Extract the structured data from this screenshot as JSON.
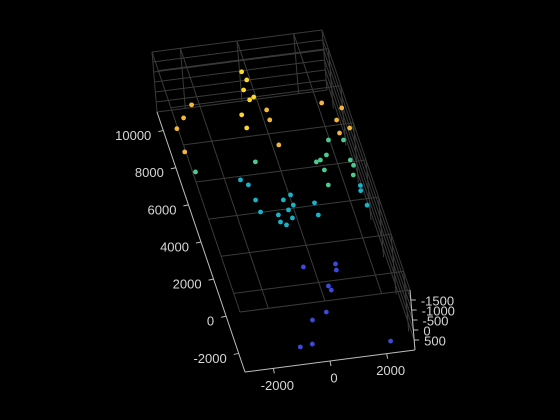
{
  "chart_data": {
    "type": "scatter3d",
    "xlim": [
      -3000,
      3000
    ],
    "ylim": [
      -3000,
      11000
    ],
    "zlim": [
      -2000,
      1000
    ],
    "xticks": [
      -2000,
      0,
      2000
    ],
    "yticks": [
      -2000,
      0,
      2000,
      4000,
      6000,
      8000,
      10000
    ],
    "zticks": [
      -1500,
      -1000,
      -500,
      0,
      500
    ],
    "grid": true,
    "series": [
      {
        "color": "#3d48dc",
        "x": [
          -930,
          -490,
          2190,
          -210,
          350,
          720,
          770,
          90,
          1210,
          1170
        ],
        "y": [
          -2600,
          -2530,
          -2900,
          -1290,
          -970,
          360,
          130,
          1510,
          1450,
          1130
        ],
        "z": [
          500,
          500,
          500,
          500,
          500,
          500,
          500,
          500,
          500,
          500
        ]
      },
      {
        "color": "#19b3c9",
        "x": [
          180,
          240,
          0,
          -170,
          460,
          480,
          -160,
          280,
          1200,
          1190,
          -730,
          -1040,
          -830,
          -760,
          2900,
          2950,
          2950
        ],
        "y": [
          5100,
          4550,
          3790,
          3980,
          4770,
          5310,
          4360,
          4110,
          4740,
          4090,
          4630,
          6420,
          6110,
          5280,
          5060,
          4270,
          5330
        ],
        "z": [
          500,
          500,
          500,
          500,
          500,
          500,
          500,
          500,
          500,
          500,
          500,
          500,
          500,
          500,
          500,
          500,
          500
        ]
      },
      {
        "color": "#4cc98f",
        "x": [
          1890,
          2150,
          1730,
          1910,
          1870,
          -330,
          2830,
          2950,
          2900,
          2900,
          2390,
          -2470
        ],
        "y": [
          6910,
          7130,
          6840,
          6370,
          5570,
          7250,
          5920,
          6420,
          6710,
          7790,
          7890,
          7130
        ],
        "z": [
          500,
          500,
          500,
          500,
          500,
          500,
          500,
          500,
          500,
          500,
          500,
          500
        ]
      },
      {
        "color": "#fbd62b",
        "x": [
          -110,
          -30,
          -250,
          -160,
          10,
          -600,
          -580
        ],
        "y": [
          9900,
          9450,
          8950,
          8400,
          8520,
          7680,
          6970
        ],
        "z": [
          -1500,
          -1500,
          -1500,
          -1500,
          -1500,
          -1500,
          -1500
        ]
      },
      {
        "color": "#f3b63c",
        "x": [
          300,
          290,
          -2180,
          -2600,
          -2950,
          -2950,
          310,
          2240,
          2860,
          2550,
          2900,
          2500
        ],
        "y": [
          7770,
          7230,
          8530,
          7910,
          7400,
          6150,
          5880,
          7760,
          7370,
          6780,
          6280,
          6090
        ],
        "z": [
          -1500,
          -1500,
          -1500,
          -1500,
          -1500,
          -1500,
          -1500,
          -1500,
          -1500,
          -1500,
          -1500,
          -1500
        ]
      }
    ]
  }
}
